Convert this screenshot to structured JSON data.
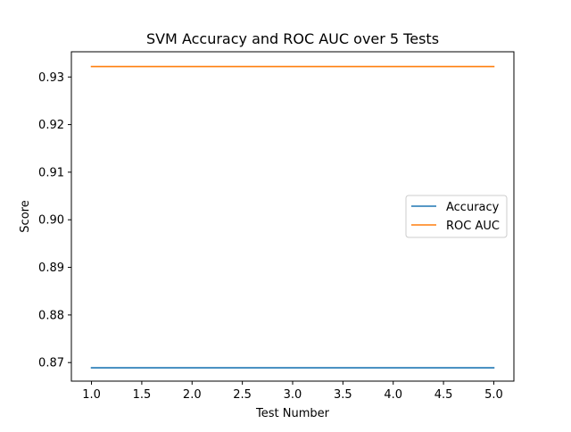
{
  "chart_data": {
    "type": "line",
    "title": "SVM Accuracy and ROC AUC over 5 Tests",
    "xlabel": "Test Number",
    "ylabel": "Score",
    "x": [
      1,
      2,
      3,
      4,
      5
    ],
    "xlim": [
      0.8,
      5.2
    ],
    "ylim": [
      0.8661,
      0.9353
    ],
    "xticks": [
      1.0,
      1.5,
      2.0,
      2.5,
      3.0,
      3.5,
      4.0,
      4.5,
      5.0
    ],
    "xtick_labels": [
      "1.0",
      "1.5",
      "2.0",
      "2.5",
      "3.0",
      "3.5",
      "4.0",
      "4.5",
      "5.0"
    ],
    "yticks": [
      0.87,
      0.88,
      0.89,
      0.9,
      0.91,
      0.92,
      0.93
    ],
    "ytick_labels": [
      "0.87",
      "0.88",
      "0.89",
      "0.90",
      "0.91",
      "0.92",
      "0.93"
    ],
    "grid": false,
    "legend_position": "center-right",
    "series": [
      {
        "name": "Accuracy",
        "values": [
          0.8689,
          0.8689,
          0.8689,
          0.8689,
          0.8689
        ],
        "color": "#1f77b4"
      },
      {
        "name": "ROC AUC",
        "values": [
          0.9322,
          0.9322,
          0.9322,
          0.9322,
          0.9322
        ],
        "color": "#ff7f0e"
      }
    ]
  }
}
